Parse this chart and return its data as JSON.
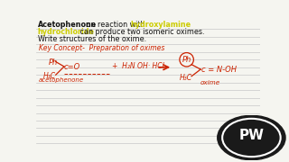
{
  "bg_color": "#f5f5f0",
  "line_color": "#d0d0d0",
  "red_color": "#cc2200",
  "yellow_color": "#cccc00",
  "black_color": "#111111",
  "white_color": "#ffffff",
  "top_line1_black1": "Acetophenone",
  "top_line1_black2": " on reaction with ",
  "top_line1_yellow": "hydroxylamine",
  "top_line2_yellow": "hydrochloride",
  "top_line2_black": " can produce two isomeric oximes.",
  "top_line3": "Write structures of the oxime.",
  "key_concept": "Key Concept-  Preparation of oximes",
  "label_Ph_left": "Ph",
  "label_cO": "c=O",
  "label_reagent": "+  H₂N OH· HCl",
  "label_Ph_right": "Ph",
  "label_cNOH": "c = N-OH",
  "label_H3C_left": "H₃C",
  "label_H3C_right": "H₃C",
  "label_acetophenone": "acetophenone",
  "label_oxime": "oxime",
  "pw_text_P": "P",
  "pw_text_W": "W"
}
